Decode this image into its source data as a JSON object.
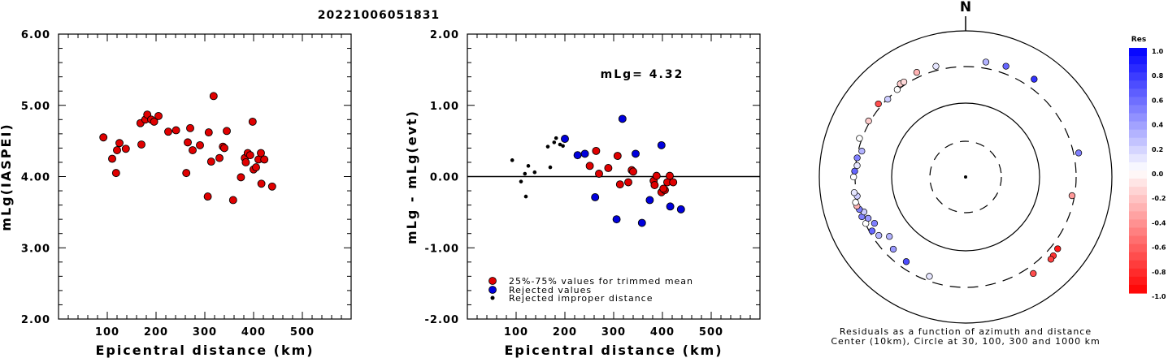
{
  "chart_data": [
    {
      "type": "scatter",
      "title": "20221006051831",
      "xlabel": "Epicentral distance (km)",
      "ylabel": "mLg(IASPEI)",
      "xlim": [
        0,
        600
      ],
      "ylim": [
        2.0,
        6.0
      ],
      "xticks": [
        "100",
        "200",
        "300",
        "400",
        "500"
      ],
      "yticks": [
        "2.00",
        "3.00",
        "4.00",
        "5.00",
        "6.00"
      ],
      "marker_color": "#e00000",
      "points": [
        [
          92,
          4.55
        ],
        [
          110,
          4.25
        ],
        [
          118,
          4.05
        ],
        [
          120,
          4.37
        ],
        [
          125,
          4.47
        ],
        [
          138,
          4.39
        ],
        [
          168,
          4.75
        ],
        [
          170,
          4.45
        ],
        [
          178,
          4.8
        ],
        [
          182,
          4.87
        ],
        [
          190,
          4.8
        ],
        [
          196,
          4.77
        ],
        [
          205,
          4.85
        ],
        [
          225,
          4.63
        ],
        [
          241,
          4.65
        ],
        [
          262,
          4.05
        ],
        [
          265,
          4.48
        ],
        [
          270,
          4.68
        ],
        [
          275,
          4.37
        ],
        [
          290,
          4.44
        ],
        [
          306,
          3.72
        ],
        [
          308,
          4.62
        ],
        [
          313,
          4.21
        ],
        [
          318,
          5.13
        ],
        [
          330,
          4.26
        ],
        [
          337,
          4.42
        ],
        [
          340,
          4.4
        ],
        [
          345,
          4.64
        ],
        [
          358,
          3.67
        ],
        [
          374,
          3.99
        ],
        [
          382,
          4.26
        ],
        [
          384,
          4.2
        ],
        [
          388,
          4.33
        ],
        [
          393,
          4.3
        ],
        [
          398,
          4.77
        ],
        [
          400,
          4.1
        ],
        [
          405,
          4.13
        ],
        [
          410,
          4.24
        ],
        [
          415,
          4.33
        ],
        [
          416,
          3.9
        ],
        [
          422,
          4.24
        ],
        [
          438,
          3.86
        ]
      ]
    },
    {
      "type": "scatter",
      "xlabel": "Epicentral distance (km)",
      "ylabel": "mLg - mLg(evt)",
      "xlim": [
        0,
        600
      ],
      "ylim": [
        -2.0,
        2.0
      ],
      "xticks": [
        "100",
        "200",
        "300",
        "400",
        "500"
      ],
      "yticks": [
        "-2.00",
        "-1.00",
        "0.00",
        "1.00",
        "2.00"
      ],
      "annotation": "mLg= 4.32",
      "legend": [
        "25%-75% values for trimmed mean",
        "Rejected values",
        "Rejected improper distance"
      ],
      "legend_position": "bottom-left",
      "series": [
        {
          "name": "25%-75% values for trimmed mean",
          "color": "#e00000",
          "points": [
            [
              251,
              0.15
            ],
            [
              264,
              0.36
            ],
            [
              270,
              0.04
            ],
            [
              289,
              0.12
            ],
            [
              308,
              0.29
            ],
            [
              313,
              -0.11
            ],
            [
              330,
              -0.08
            ],
            [
              337,
              0.09
            ],
            [
              340,
              0.07
            ],
            [
              382,
              -0.06
            ],
            [
              384,
              -0.12
            ],
            [
              388,
              0.01
            ],
            [
              398,
              -0.22
            ],
            [
              405,
              -0.19
            ],
            [
              410,
              -0.08
            ],
            [
              415,
              0.01
            ],
            [
              422,
              -0.08
            ],
            [
              402,
              -0.17
            ]
          ]
        },
        {
          "name": "Rejected values",
          "color": "#0000dd",
          "points": [
            [
              200,
              0.53
            ],
            [
              226,
              0.3
            ],
            [
              241,
              0.32
            ],
            [
              262,
              -0.29
            ],
            [
              306,
              -0.6
            ],
            [
              318,
              0.81
            ],
            [
              345,
              0.32
            ],
            [
              358,
              -0.65
            ],
            [
              374,
              -0.33
            ],
            [
              398,
              0.44
            ],
            [
              416,
              -0.42
            ],
            [
              438,
              -0.46
            ]
          ]
        },
        {
          "name": "Rejected improper distance",
          "color": "#000000",
          "points": [
            [
              92,
              0.23
            ],
            [
              110,
              -0.07
            ],
            [
              118,
              0.04
            ],
            [
              120,
              -0.28
            ],
            [
              125,
              0.15
            ],
            [
              138,
              0.06
            ],
            [
              165,
              0.42
            ],
            [
              170,
              0.13
            ],
            [
              178,
              0.48
            ],
            [
              182,
              0.54
            ],
            [
              190,
              0.45
            ],
            [
              196,
              0.43
            ]
          ]
        }
      ]
    },
    {
      "type": "scatter",
      "subtype": "polar",
      "north_label": "N",
      "caption_line1": "Residuals as a function of azimuth and distance",
      "caption_line2": "Center (10km), Circle at 30, 100, 300 and 1000 km",
      "rings_km": [
        30,
        100,
        300,
        1000
      ],
      "colorbar_title": "Res",
      "colorbar_labels": [
        "1.0",
        "0.8",
        "0.6",
        "0.4",
        "0.2",
        "0.0",
        "-0.2",
        "-0.4",
        "-0.6",
        "-0.8",
        "-1.0"
      ],
      "color_positive": "#0000ff",
      "color_negative": "#ff0000",
      "stations": [
        {
          "az": 20,
          "dist": 410,
          "res": 0.6
        },
        {
          "az": 10,
          "dist": 395,
          "res": 0.3
        },
        {
          "az": 35,
          "dist": 430,
          "res": 0.8
        },
        {
          "az": 78,
          "dist": 380,
          "res": 0.5
        },
        {
          "az": 100,
          "dist": 300,
          "res": -0.4
        },
        {
          "az": 128,
          "dist": 395,
          "res": -0.9
        },
        {
          "az": 132,
          "dist": 410,
          "res": -0.8
        },
        {
          "az": 134,
          "dist": 418,
          "res": -0.75
        },
        {
          "az": 145,
          "dist": 410,
          "res": -0.7
        },
        {
          "az": 200,
          "dist": 280,
          "res": 0.1
        },
        {
          "az": 215,
          "dist": 260,
          "res": 0.7
        },
        {
          "az": 225,
          "dist": 250,
          "res": 0.4
        },
        {
          "az": 232,
          "dist": 210,
          "res": 0.3
        },
        {
          "az": 236,
          "dist": 270,
          "res": 0.3
        },
        {
          "az": 240,
          "dist": 300,
          "res": 0.6
        },
        {
          "az": 243,
          "dist": 250,
          "res": 0.5
        },
        {
          "az": 245,
          "dist": 320,
          "res": 0.0
        },
        {
          "az": 247,
          "dist": 280,
          "res": 0.4
        },
        {
          "az": 249,
          "dist": 330,
          "res": 0.5
        },
        {
          "az": 251,
          "dist": 295,
          "res": 0.2
        },
        {
          "az": 253,
          "dist": 330,
          "res": 0.5
        },
        {
          "az": 255,
          "dist": 345,
          "res": -0.3
        },
        {
          "az": 257,
          "dist": 350,
          "res": 0.0
        },
        {
          "az": 260,
          "dist": 320,
          "res": 0.2
        },
        {
          "az": 262,
          "dist": 345,
          "res": 0.1
        },
        {
          "az": 270,
          "dist": 340,
          "res": 0.0
        },
        {
          "az": 273,
          "dist": 330,
          "res": 0.6
        },
        {
          "az": 276,
          "dist": 310,
          "res": 0.1
        },
        {
          "az": 280,
          "dist": 320,
          "res": 0.5
        },
        {
          "az": 284,
          "dist": 290,
          "res": 0.3
        },
        {
          "az": 290,
          "dist": 350,
          "res": 0.0
        },
        {
          "az": 300,
          "dist": 340,
          "res": -0.2
        },
        {
          "az": 310,
          "dist": 360,
          "res": -0.7
        },
        {
          "az": 315,
          "dist": 320,
          "res": 0.2
        },
        {
          "az": 322,
          "dist": 330,
          "res": 0.0
        },
        {
          "az": 325,
          "dist": 360,
          "res": -0.2
        },
        {
          "az": 327,
          "dist": 355,
          "res": -0.15
        },
        {
          "az": 335,
          "dist": 380,
          "res": -0.3
        },
        {
          "az": 345,
          "dist": 370,
          "res": 0.1
        }
      ]
    }
  ]
}
